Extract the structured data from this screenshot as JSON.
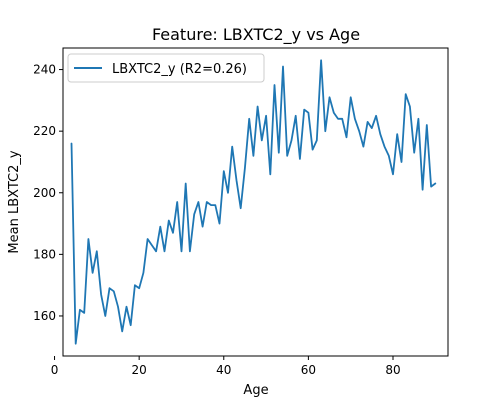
{
  "chart_data": {
    "type": "line",
    "title": "Feature: LBXTC2_y vs Age",
    "xlabel": "Age",
    "ylabel": "Mean LBXTC2_y",
    "xlim": [
      2,
      93
    ],
    "ylim": [
      147,
      247
    ],
    "xticks": [
      0,
      20,
      40,
      60,
      80
    ],
    "yticks": [
      160,
      180,
      200,
      220,
      240
    ],
    "grid": false,
    "legend_position": "top-left",
    "series": [
      {
        "name": "LBXTC2_y (R2=0.26)",
        "color": "#1f77b4",
        "x": [
          4,
          5,
          6,
          7,
          8,
          9,
          10,
          11,
          12,
          13,
          14,
          15,
          16,
          17,
          18,
          19,
          20,
          21,
          22,
          23,
          24,
          25,
          26,
          27,
          28,
          29,
          30,
          31,
          32,
          33,
          34,
          35,
          36,
          37,
          38,
          39,
          40,
          41,
          42,
          43,
          44,
          45,
          46,
          47,
          48,
          49,
          50,
          51,
          52,
          53,
          54,
          55,
          56,
          57,
          58,
          59,
          60,
          61,
          62,
          63,
          64,
          65,
          66,
          67,
          68,
          69,
          70,
          71,
          72,
          73,
          74,
          75,
          76,
          77,
          78,
          79,
          80,
          81,
          82,
          83,
          84,
          85,
          86,
          87,
          88,
          89,
          90
        ],
        "y": [
          216,
          151,
          162,
          161,
          185,
          174,
          181,
          167,
          160,
          169,
          168,
          163,
          155,
          163,
          157,
          170,
          169,
          174,
          185,
          183,
          181,
          189,
          181,
          191,
          187,
          197,
          181,
          203,
          181,
          193,
          197,
          189,
          197,
          196,
          196,
          190,
          207,
          200,
          215,
          204,
          195,
          208,
          224,
          212,
          228,
          217,
          225,
          206,
          235,
          213,
          241,
          212,
          217,
          225,
          211,
          227,
          226,
          214,
          217,
          243,
          220,
          231,
          226,
          224,
          224,
          218,
          231,
          224,
          220,
          215,
          223,
          221,
          225,
          219,
          215,
          212,
          206,
          219,
          210,
          232,
          228,
          213,
          224,
          201,
          222,
          202,
          203
        ]
      }
    ]
  }
}
